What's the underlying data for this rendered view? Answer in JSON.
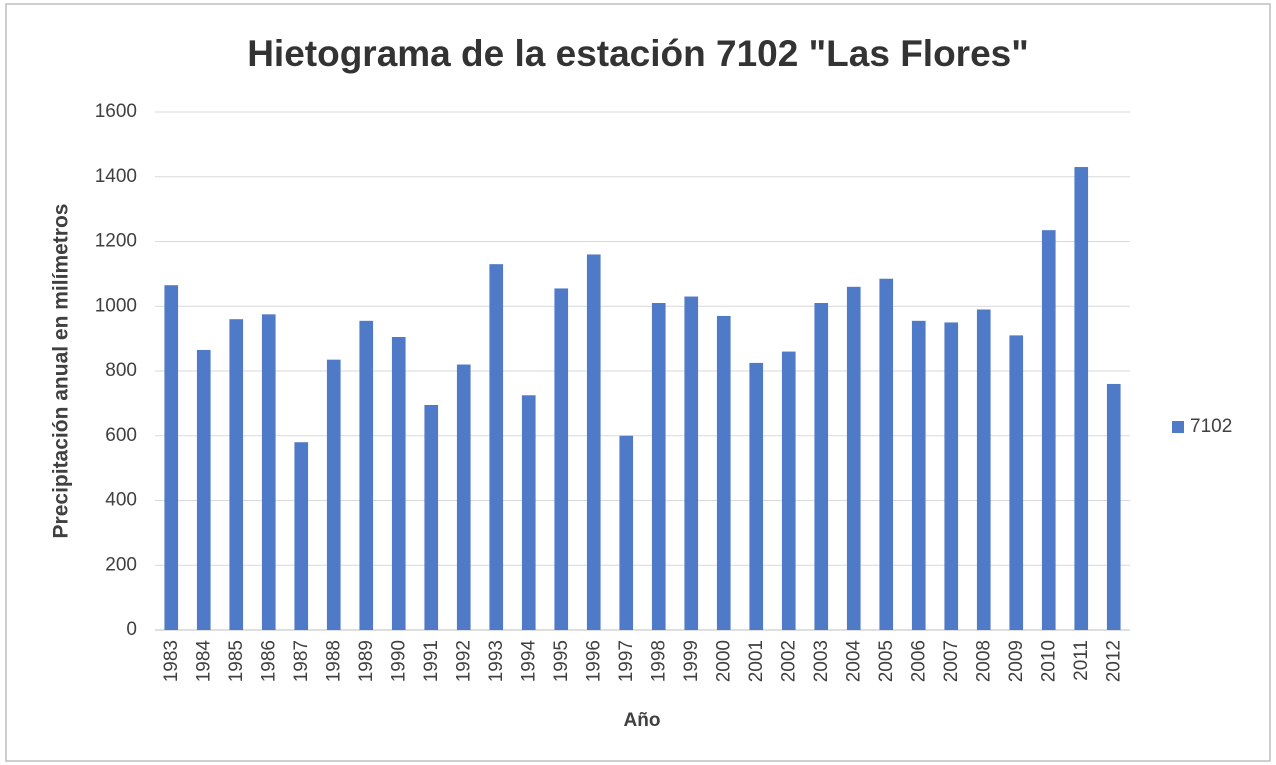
{
  "chart_data": {
    "type": "bar",
    "title": "Hietograma de la estación 7102 \"Las Flores\"",
    "x_label": "Año",
    "y_label": "Precipitación anual en milímetros",
    "categories": [
      "1983",
      "1984",
      "1985",
      "1986",
      "1987",
      "1988",
      "1989",
      "1990",
      "1991",
      "1992",
      "1993",
      "1994",
      "1995",
      "1996",
      "1997",
      "1998",
      "1999",
      "2000",
      "2001",
      "2002",
      "2003",
      "2004",
      "2005",
      "2006",
      "2007",
      "2008",
      "2009",
      "2010",
      "2011",
      "2012"
    ],
    "series": [
      {
        "name": "7102",
        "color": "#4f7ac7",
        "values": [
          1065,
          865,
          960,
          975,
          580,
          835,
          955,
          905,
          695,
          820,
          1130,
          725,
          1055,
          1160,
          600,
          1010,
          1030,
          970,
          825,
          860,
          1010,
          1060,
          1085,
          955,
          950,
          990,
          910,
          1235,
          1430,
          760
        ]
      }
    ],
    "ylim": [
      0,
      1600
    ],
    "yticks": [
      0,
      200,
      400,
      600,
      800,
      1000,
      1200,
      1400,
      1600
    ],
    "grid": true,
    "legend": "right"
  }
}
